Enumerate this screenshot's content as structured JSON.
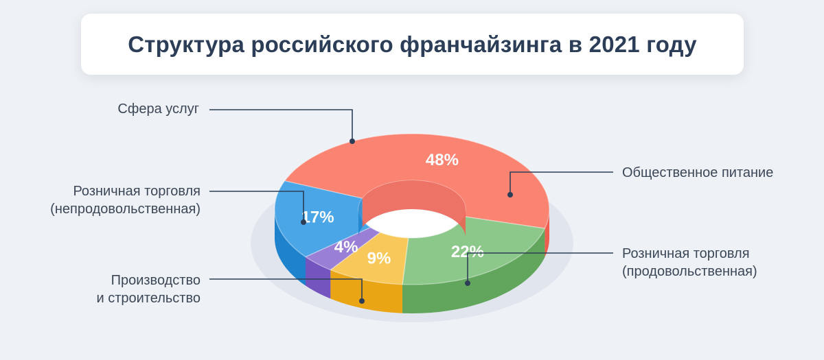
{
  "title": "Структура российского франчайзинга в 2021 году",
  "chart_data": {
    "type": "pie",
    "style": "3d-donut",
    "slices": [
      {
        "label": "Сфера услуг",
        "value": 48,
        "display": "48%",
        "color_top": "#fb8372",
        "color_side": "#ee5e4f"
      },
      {
        "label": "Общественное питание",
        "value": 22,
        "display": "22%",
        "color_top": "#8cc88a",
        "color_side": "#62a65e"
      },
      {
        "label": "Розничная торговля (продовольственная)",
        "value": 9,
        "display": "9%",
        "color_top": "#f8c95a",
        "color_side": "#eaa514"
      },
      {
        "label": "Производство и строительство",
        "value": 4,
        "display": "4%",
        "color_top": "#9a7fd6",
        "color_side": "#7454be"
      },
      {
        "label": "Розничная торговля (непродовольственная)",
        "value": 17,
        "display": "17%",
        "color_top": "#4aa6e6",
        "color_side": "#1f82cd"
      }
    ]
  },
  "labels": {
    "services": "Сфера услуг",
    "catering": "Общественное питание",
    "retail_nonfood_1": "Розничная торговля",
    "retail_nonfood_2": "(непродовольственная)",
    "retail_food_1": "Розничная торговля",
    "retail_food_2": "(продовольственная)",
    "production_1": "Производство",
    "production_2": "и строительство"
  }
}
